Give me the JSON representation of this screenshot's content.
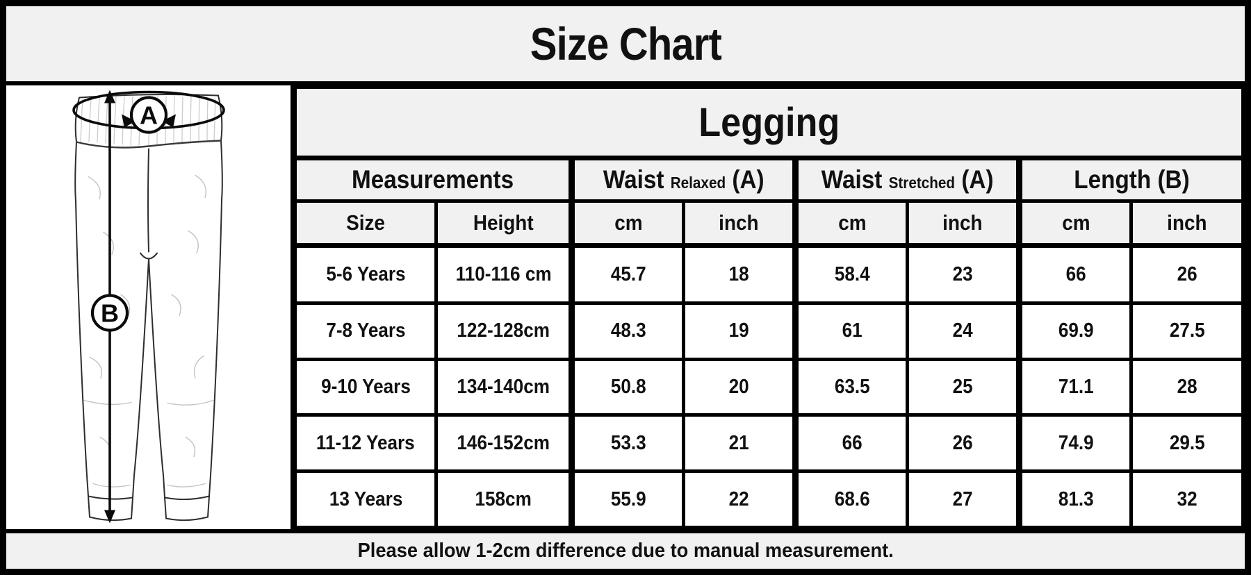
{
  "title": "Size Chart",
  "illustration": {
    "garment": "legging-sketch",
    "label_a": "A",
    "label_b": "B",
    "icons": {
      "waist_arrow": "ellipse-double-arrow",
      "length_arrow": "vertical-double-arrow"
    }
  },
  "table": {
    "title": "Legging",
    "groups": [
      {
        "label": "Measurements"
      },
      {
        "main": "Waist",
        "qualifier": "Relaxed",
        "suffix": "(A)"
      },
      {
        "main": "Waist",
        "qualifier": "Stretched",
        "suffix": "(A)"
      },
      {
        "label": "Length (B)"
      }
    ],
    "columns": [
      "Size",
      "Height",
      "cm",
      "inch",
      "cm",
      "inch",
      "cm",
      "inch"
    ],
    "rows": [
      [
        "5-6 Years",
        "110-116 cm",
        "45.7",
        "18",
        "58.4",
        "23",
        "66",
        "26"
      ],
      [
        "7-8 Years",
        "122-128cm",
        "48.3",
        "19",
        "61",
        "24",
        "69.9",
        "27.5"
      ],
      [
        "9-10 Years",
        "134-140cm",
        "50.8",
        "20",
        "63.5",
        "25",
        "71.1",
        "28"
      ],
      [
        "11-12 Years",
        "146-152cm",
        "53.3",
        "21",
        "66",
        "26",
        "74.9",
        "29.5"
      ],
      [
        "13 Years",
        "158cm",
        "55.9",
        "22",
        "68.6",
        "27",
        "81.3",
        "32"
      ]
    ]
  },
  "footer": {
    "note": "Please allow 1-2cm difference due to manual measurement."
  },
  "colors": {
    "header_bg": "#f1f1f1",
    "cell_bg": "#ffffff",
    "border": "#000000",
    "text": "#111111",
    "sketch": "#2e2e2e"
  }
}
